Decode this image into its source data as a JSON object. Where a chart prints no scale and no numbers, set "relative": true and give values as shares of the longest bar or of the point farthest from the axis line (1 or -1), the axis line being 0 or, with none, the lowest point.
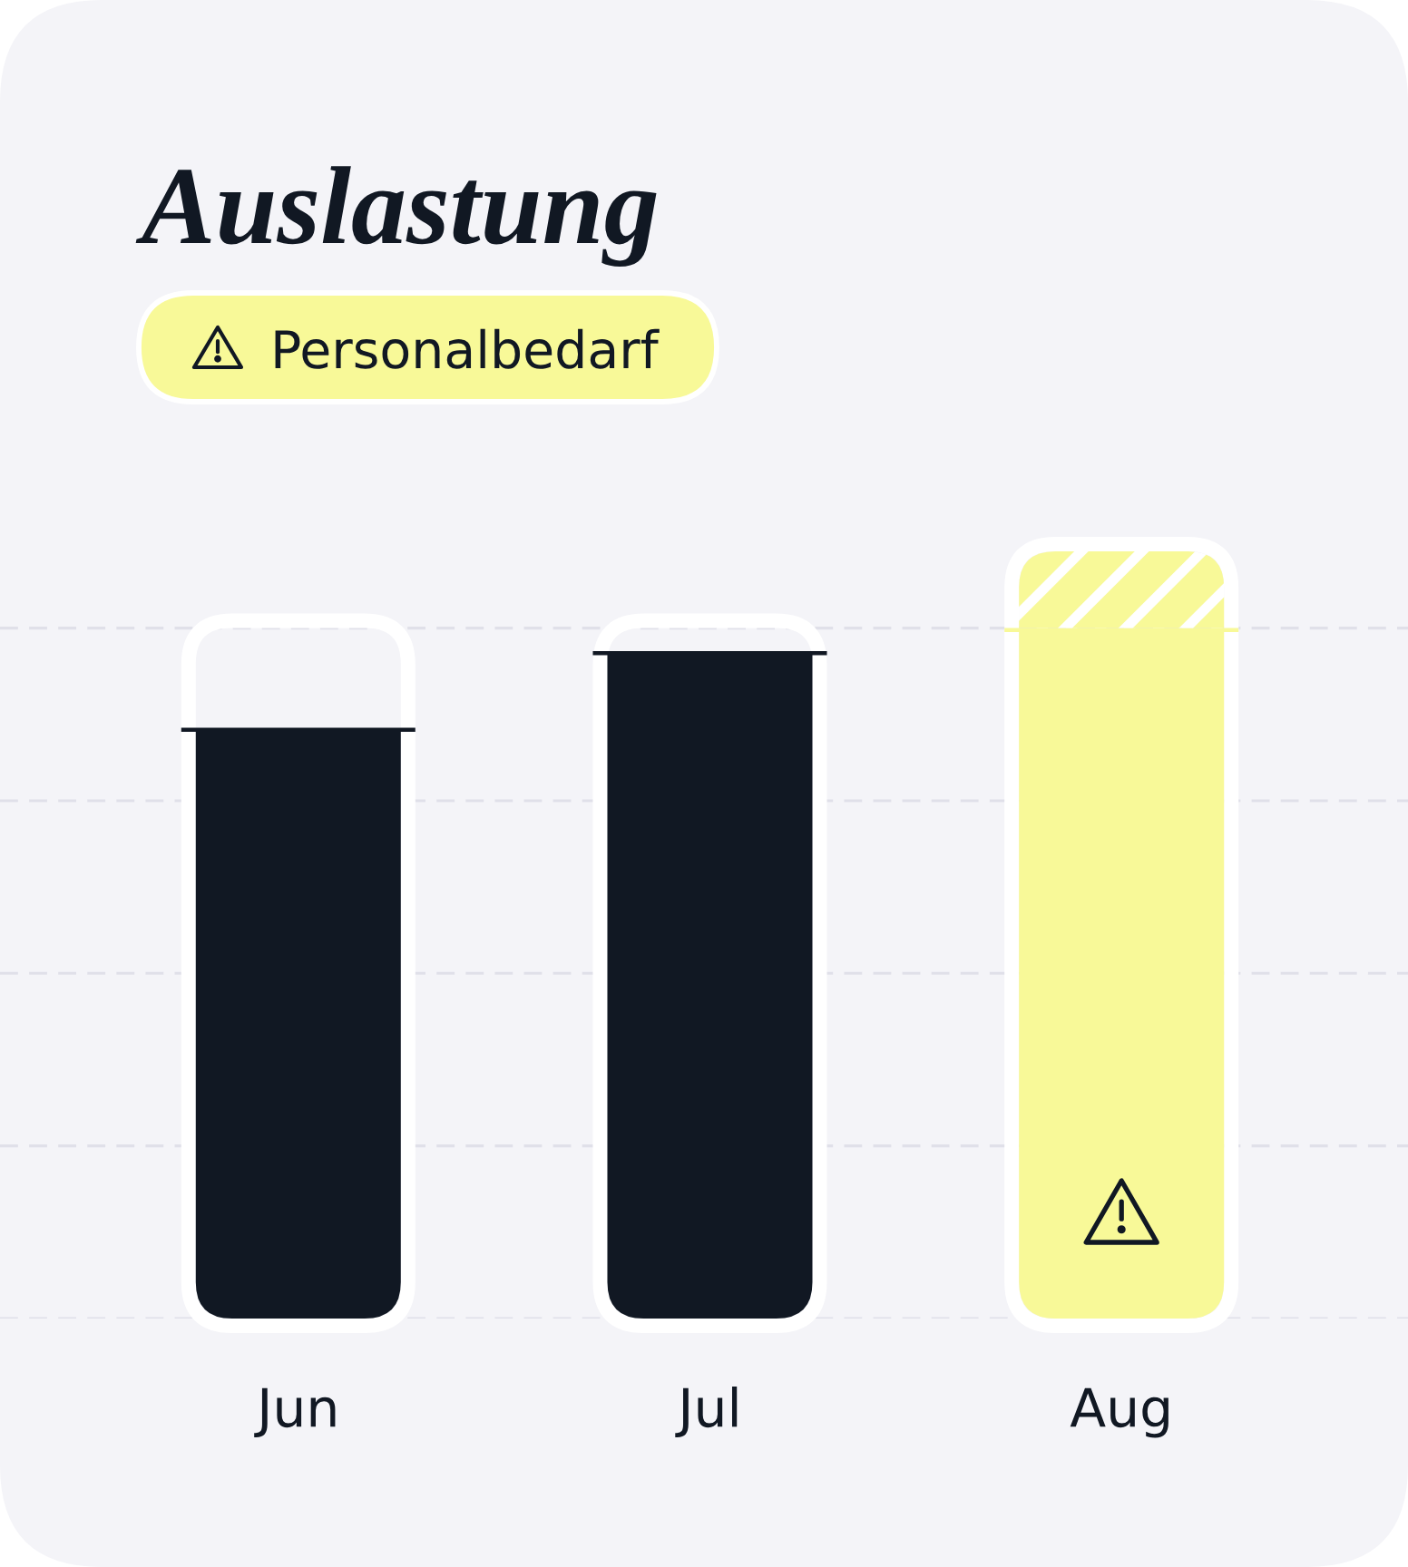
{
  "chart_data": {
    "type": "bar",
    "title": "Auslastung",
    "annotations": [
      "Personalbedarf"
    ],
    "categories": [
      "Jun",
      "Jul",
      "Aug"
    ],
    "stacked": true,
    "relative": true,
    "series": [
      {
        "colors": [
          "#111823",
          "#111823",
          "#f8f998"
        ],
        "values": [
          0.77,
          0.87,
          0.9
        ]
      },
      {
        "color": "#f8f998",
        "values": [
          null,
          null,
          0.1
        ]
      }
    ],
    "grid": "y"
  }
}
